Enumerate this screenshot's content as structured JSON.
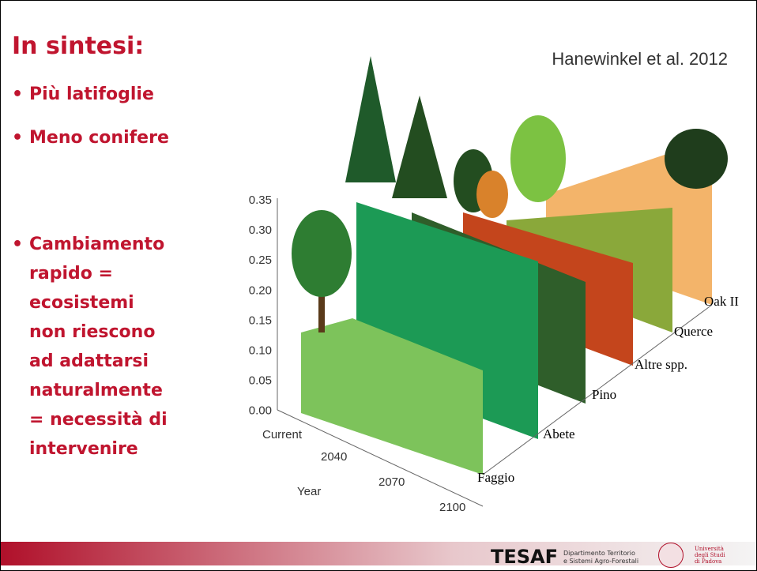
{
  "slide": {
    "title": "In sintesi:",
    "bullets": [
      [
        "Più latifoglie"
      ],
      [
        "Meno conifere"
      ],
      [
        "Cambiamento",
        "rapido =",
        "ecosistemi",
        "non riescono",
        "ad adattarsi",
        "naturalmente",
        "= necessità di",
        "intervenire"
      ]
    ],
    "figure": {
      "source": "Hanewinkel et al. 2012",
      "yticks": [
        "0.35",
        "0.30",
        "0.25",
        "0.20",
        "0.15",
        "0.10",
        "0.05",
        "0.00"
      ],
      "xlabels": [
        "Current",
        "2040",
        "2070",
        "2100"
      ],
      "xtitle": "Year",
      "species": [
        "Faggio",
        "Abete",
        "Pino",
        "Altre spp.",
        "Querce",
        "Oak II"
      ]
    },
    "footer": {
      "logo": "TESAF",
      "department": [
        "Dipartimento Territorio",
        "e Sistemi Agro-Forestali"
      ],
      "university": [
        "Università",
        "degli Studi",
        "di Padova"
      ]
    }
  }
}
